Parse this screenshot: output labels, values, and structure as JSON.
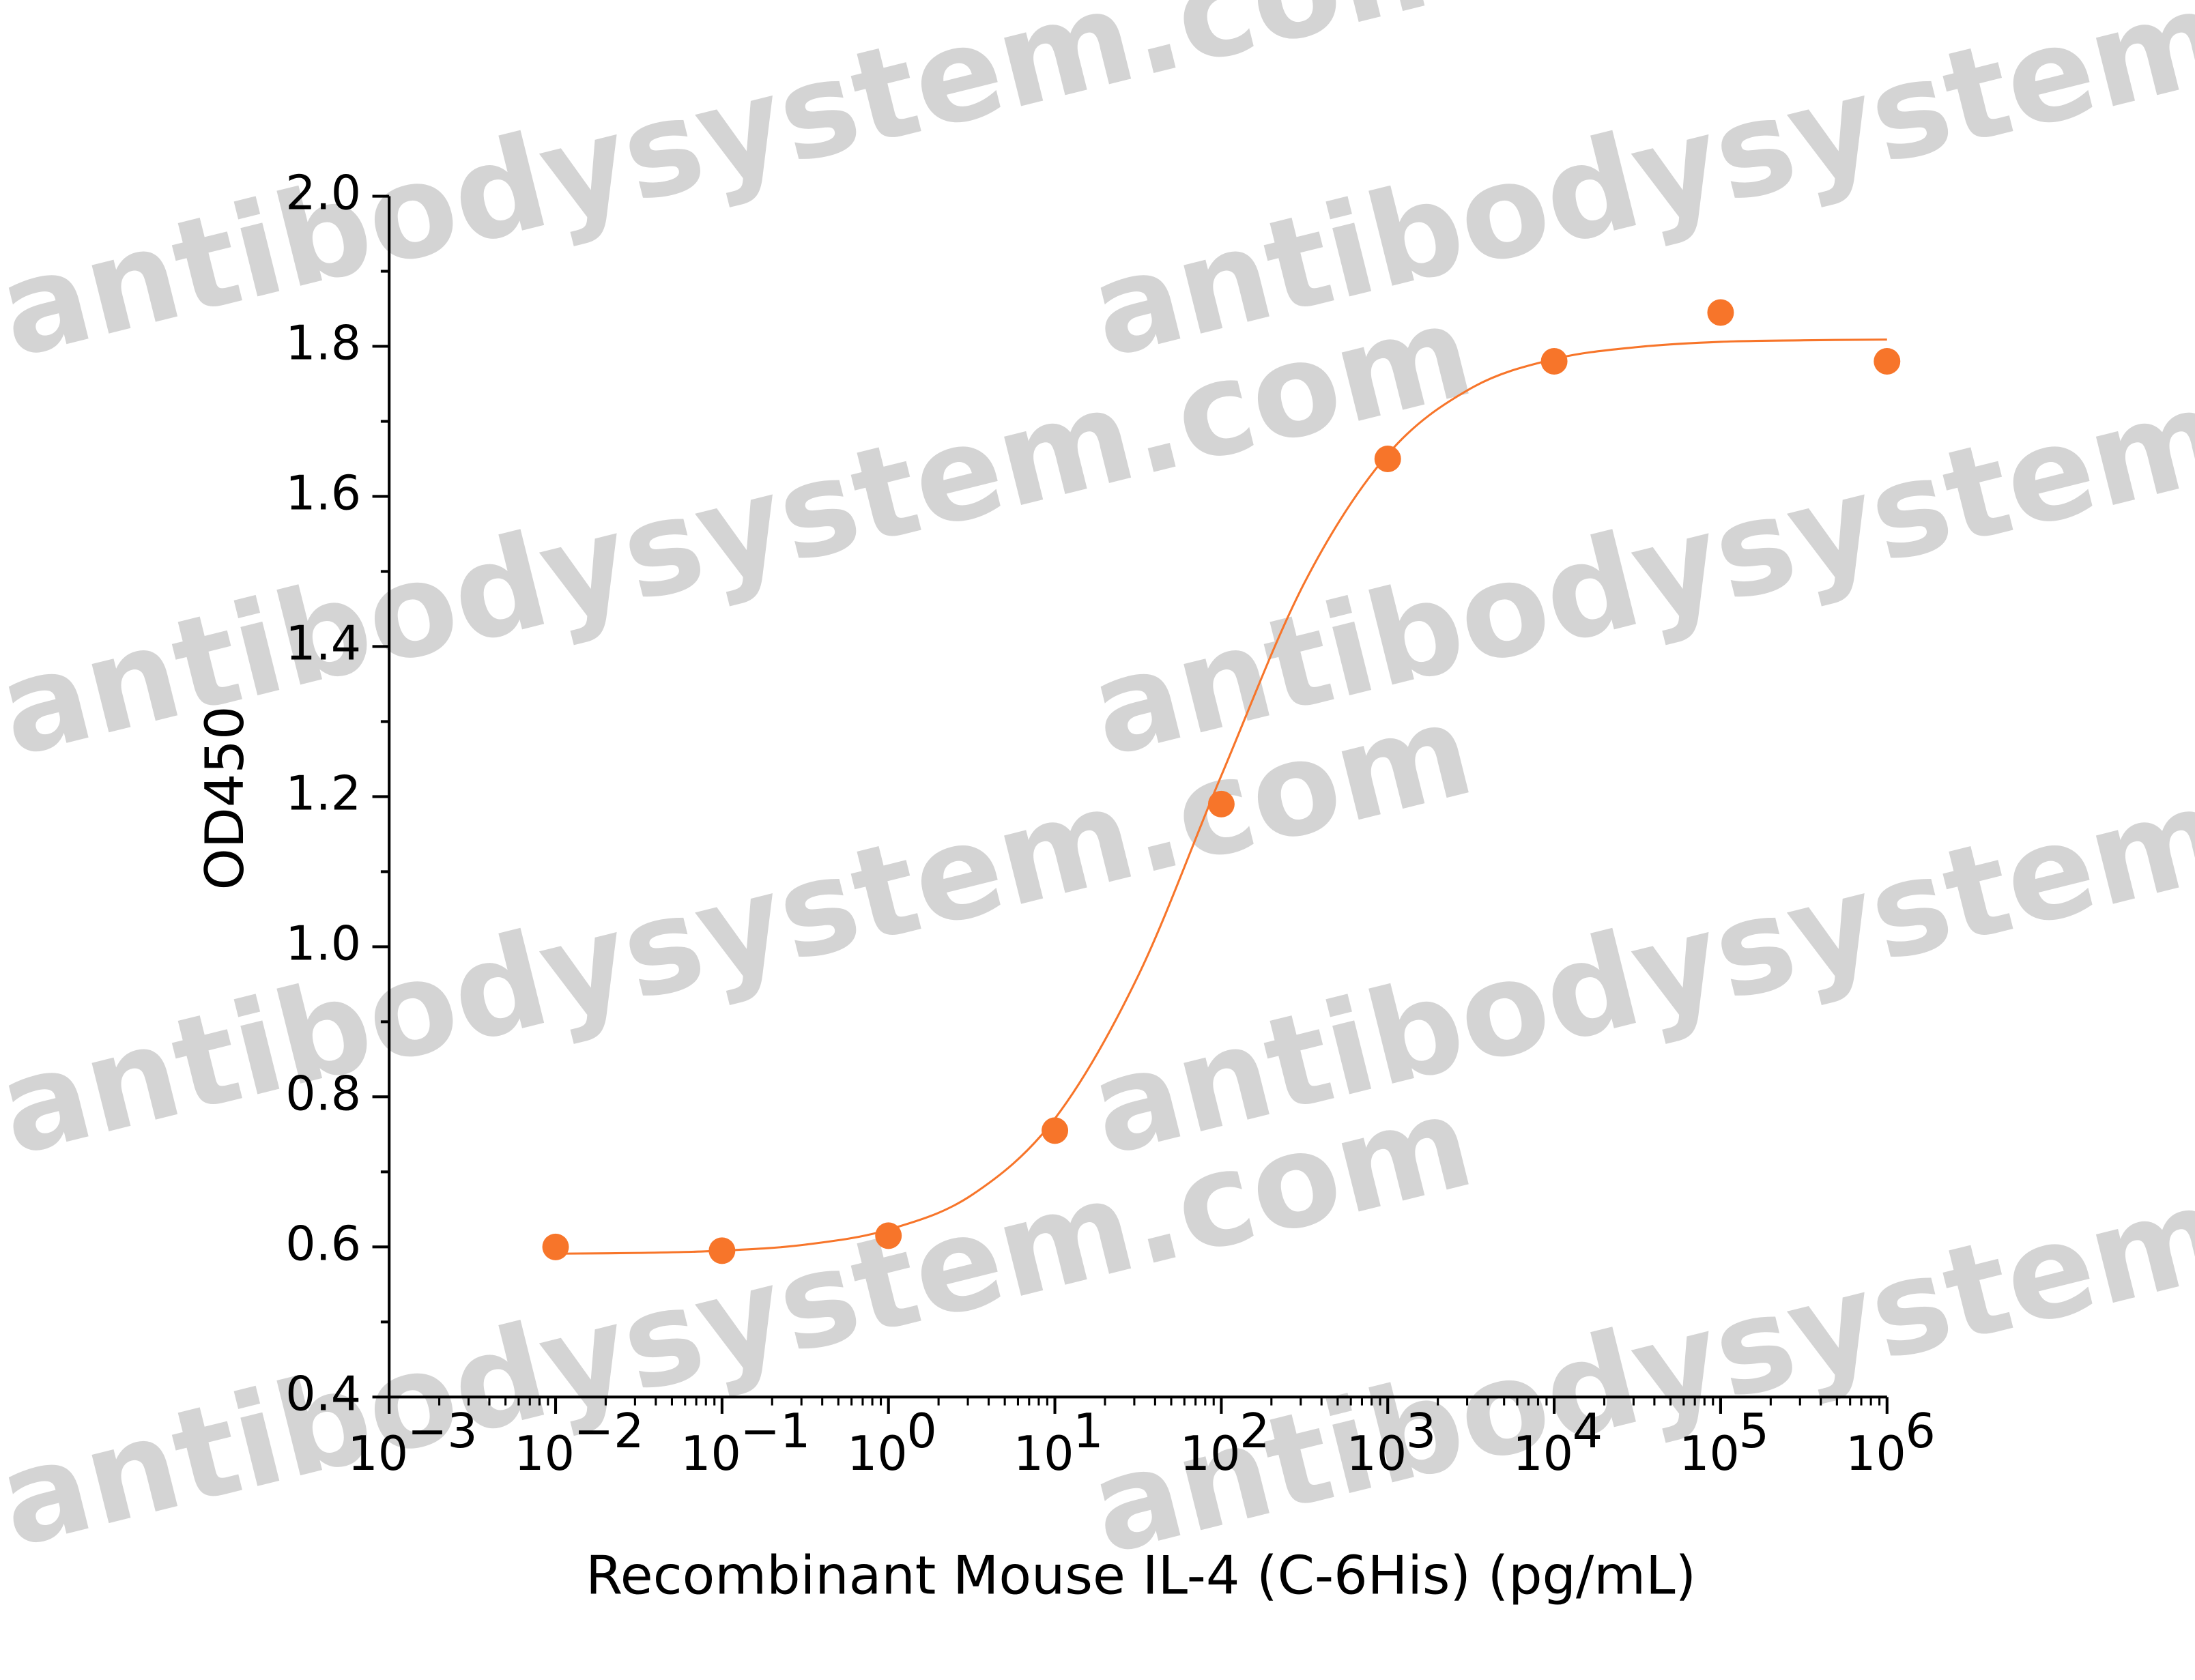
{
  "chart_data": {
    "type": "scatter",
    "watermark": "antibodysystem.com",
    "x_label": "Recombinant Mouse IL-4 (C-6His) (pg/mL)",
    "y_label": "OD450",
    "xscale": "log",
    "xlim": [
      0.001,
      1000000
    ],
    "ylim": [
      0.4,
      2.0
    ],
    "xticks": [
      {
        "value": 0.001,
        "label": "10",
        "exponent": "−3"
      },
      {
        "value": 0.01,
        "label": "10",
        "exponent": "−2"
      },
      {
        "value": 0.1,
        "label": "10",
        "exponent": "−1"
      },
      {
        "value": 1,
        "label": "10",
        "exponent": "0"
      },
      {
        "value": 10,
        "label": "10",
        "exponent": "1"
      },
      {
        "value": 100,
        "label": "10",
        "exponent": "2"
      },
      {
        "value": 1000,
        "label": "10",
        "exponent": "3"
      },
      {
        "value": 10000,
        "label": "10",
        "exponent": "4"
      },
      {
        "value": 100000,
        "label": "10",
        "exponent": "5"
      },
      {
        "value": 1000000,
        "label": "10",
        "exponent": "6"
      }
    ],
    "yticks": [
      {
        "value": 0.4,
        "label": "0.4"
      },
      {
        "value": 0.6,
        "label": "0.6"
      },
      {
        "value": 0.8,
        "label": "0.8"
      },
      {
        "value": 1.0,
        "label": "1.0"
      },
      {
        "value": 1.2,
        "label": "1.2"
      },
      {
        "value": 1.4,
        "label": "1.4"
      },
      {
        "value": 1.6,
        "label": "1.6"
      },
      {
        "value": 1.8,
        "label": "1.8"
      },
      {
        "value": 2.0,
        "label": "2.0"
      }
    ],
    "grid": false,
    "color": "#f7752a",
    "x": [
      0.01,
      0.1,
      1,
      10,
      100,
      1000,
      10000,
      100000,
      1000000
    ],
    "values": [
      0.6,
      0.595,
      0.615,
      0.755,
      1.19,
      1.65,
      1.78,
      1.845,
      1.78
    ],
    "fit": {
      "type": "line",
      "color": "#f7752a",
      "x": [
        0.01,
        0.0316,
        0.1,
        0.316,
        1,
        3.16,
        10,
        31.6,
        100,
        316,
        1000,
        3160,
        10000,
        31600,
        100000,
        316000,
        1000000
      ],
      "values": [
        0.591,
        0.592,
        0.595,
        0.603,
        0.623,
        0.669,
        0.771,
        0.961,
        1.228,
        1.485,
        1.656,
        1.744,
        1.783,
        1.799,
        1.806,
        1.808,
        1.809
      ]
    }
  }
}
